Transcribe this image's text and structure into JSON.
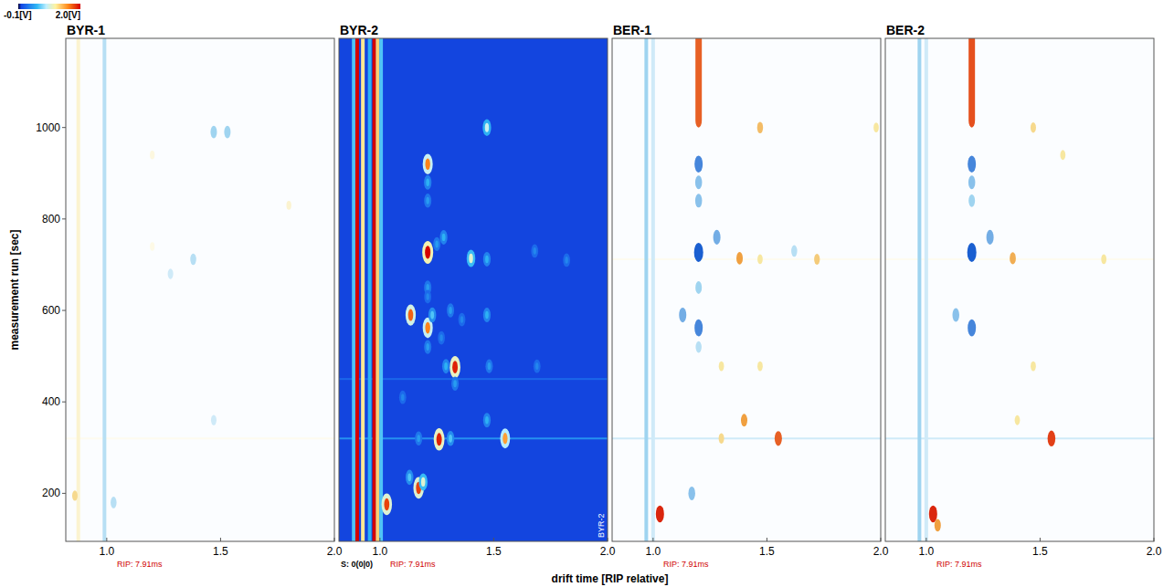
{
  "chart_data": {
    "type": "heatmap",
    "xlabel": "drift time [RIP relative]",
    "ylabel": "measurement run [sec]",
    "xlim": [
      0.82,
      2.0
    ],
    "ylim": [
      95,
      1195
    ],
    "xticks": [
      {
        "value": 1.0,
        "label": "1.0"
      },
      1.5,
      {
        "value": 2.0,
        "label": "2.0"
      }
    ],
    "yticks": [
      200,
      400,
      600,
      800,
      1000
    ],
    "colorbar": {
      "range": [
        -0.1,
        2.0
      ],
      "ticks": [
        {
          "value": -0.1,
          "label": "-0.1[V]"
        },
        {
          "value": 2.0,
          "label": "2.0[V]"
        }
      ]
    },
    "panels": [
      {
        "title": "BYR-1",
        "type": "difference",
        "rip_label": "RIP: 7.91ms",
        "vlines": [
          {
            "x": 0.875,
            "v": 0.15
          },
          {
            "x": 0.99,
            "v": -0.03
          }
        ],
        "hlines": [
          {
            "y": 320,
            "v": 0.05
          }
        ],
        "streaks": [],
        "spots": [
          {
            "x": 1.47,
            "y": 990,
            "v": -0.04
          },
          {
            "x": 1.53,
            "y": 990,
            "v": -0.04
          },
          {
            "x": 1.38,
            "y": 712,
            "v": -0.03
          },
          {
            "x": 1.28,
            "y": 680,
            "v": -0.02
          },
          {
            "x": 1.8,
            "y": 830,
            "v": 0.15
          },
          {
            "x": 1.2,
            "y": 940,
            "v": 0.1
          },
          {
            "x": 1.03,
            "y": 180,
            "v": -0.03
          },
          {
            "x": 0.86,
            "y": 195,
            "v": 0.4
          },
          {
            "x": 1.2,
            "y": 740,
            "v": 0.08
          },
          {
            "x": 1.47,
            "y": 360,
            "v": -0.02
          }
        ]
      },
      {
        "title": "BYR-2",
        "type": "absolute",
        "rip_label": "RIP: 7.91ms",
        "footer": "S: 0(0|0)",
        "watermark": "BYR-2",
        "vlines": [
          {
            "x": 0.885,
            "v": 0.6
          },
          {
            "x": 0.9,
            "v": 2.0
          },
          {
            "x": 0.925,
            "v": 1.2
          },
          {
            "x": 0.955,
            "v": 0.5
          },
          {
            "x": 0.975,
            "v": 2.0
          },
          {
            "x": 0.99,
            "v": 1.3
          },
          {
            "x": 1.005,
            "v": 0.6
          }
        ],
        "hlines": [
          {
            "y": 320,
            "v": 0.35
          },
          {
            "y": 450,
            "v": 0.15
          }
        ],
        "streaks": [],
        "spots": [
          {
            "x": 1.47,
            "y": 1000,
            "v": 0.9
          },
          {
            "x": 1.21,
            "y": 920,
            "v": 1.6
          },
          {
            "x": 1.21,
            "y": 880,
            "v": 0.5
          },
          {
            "x": 1.21,
            "y": 840,
            "v": 0.4
          },
          {
            "x": 1.21,
            "y": 727,
            "v": 2.0
          },
          {
            "x": 1.28,
            "y": 760,
            "v": 0.5
          },
          {
            "x": 1.25,
            "y": 745,
            "v": 0.4
          },
          {
            "x": 1.4,
            "y": 714,
            "v": 1.0
          },
          {
            "x": 1.47,
            "y": 712,
            "v": 0.5
          },
          {
            "x": 1.68,
            "y": 730,
            "v": 0.3
          },
          {
            "x": 1.82,
            "y": 710,
            "v": 0.3
          },
          {
            "x": 1.135,
            "y": 590,
            "v": 1.7
          },
          {
            "x": 1.21,
            "y": 562,
            "v": 1.6
          },
          {
            "x": 1.23,
            "y": 590,
            "v": 0.6
          },
          {
            "x": 1.33,
            "y": 476,
            "v": 1.9
          },
          {
            "x": 1.29,
            "y": 478,
            "v": 0.5
          },
          {
            "x": 1.48,
            "y": 478,
            "v": 0.4
          },
          {
            "x": 1.69,
            "y": 478,
            "v": 0.3
          },
          {
            "x": 1.26,
            "y": 318,
            "v": 1.9
          },
          {
            "x": 1.55,
            "y": 320,
            "v": 1.5
          },
          {
            "x": 1.31,
            "y": 320,
            "v": 0.6
          },
          {
            "x": 1.03,
            "y": 176,
            "v": 1.8
          },
          {
            "x": 1.17,
            "y": 212,
            "v": 1.8
          },
          {
            "x": 1.19,
            "y": 225,
            "v": 1.0
          },
          {
            "x": 1.13,
            "y": 235,
            "v": 0.6
          },
          {
            "x": 1.21,
            "y": 650,
            "v": 0.4
          },
          {
            "x": 1.21,
            "y": 630,
            "v": 0.3
          },
          {
            "x": 1.31,
            "y": 600,
            "v": 0.4
          },
          {
            "x": 1.36,
            "y": 580,
            "v": 0.3
          },
          {
            "x": 1.21,
            "y": 520,
            "v": 0.4
          },
          {
            "x": 1.27,
            "y": 540,
            "v": 0.3
          },
          {
            "x": 1.47,
            "y": 590,
            "v": 0.5
          },
          {
            "x": 1.47,
            "y": 360,
            "v": 0.5
          },
          {
            "x": 1.33,
            "y": 440,
            "v": 0.4
          },
          {
            "x": 1.1,
            "y": 410,
            "v": 0.3
          },
          {
            "x": 1.17,
            "y": 320,
            "v": 0.4
          }
        ]
      },
      {
        "title": "BER-1",
        "type": "difference",
        "rip_label": "RIP: 7.91ms",
        "vlines": [
          {
            "x": 0.97,
            "v": -0.04
          },
          {
            "x": 1.0,
            "v": -0.02
          }
        ],
        "hlines": [
          {
            "y": 320,
            "v": -0.02
          },
          {
            "y": 712,
            "v": 0.05
          }
        ],
        "streaks": [
          {
            "x": 1.2,
            "y0": 1000,
            "y1": 1195,
            "v": 1.2
          }
        ],
        "spots": [
          {
            "x": 1.2,
            "y": 920,
            "v": -0.08
          },
          {
            "x": 1.2,
            "y": 880,
            "v": -0.05
          },
          {
            "x": 1.2,
            "y": 840,
            "v": -0.05
          },
          {
            "x": 1.2,
            "y": 727,
            "v": -0.1
          },
          {
            "x": 1.28,
            "y": 760,
            "v": -0.06
          },
          {
            "x": 1.38,
            "y": 714,
            "v": 0.8
          },
          {
            "x": 1.47,
            "y": 1000,
            "v": 0.6
          },
          {
            "x": 1.47,
            "y": 712,
            "v": 0.3
          },
          {
            "x": 1.72,
            "y": 712,
            "v": 0.5
          },
          {
            "x": 1.13,
            "y": 590,
            "v": -0.06
          },
          {
            "x": 1.2,
            "y": 562,
            "v": -0.08
          },
          {
            "x": 1.2,
            "y": 650,
            "v": -0.04
          },
          {
            "x": 1.2,
            "y": 520,
            "v": -0.03
          },
          {
            "x": 1.3,
            "y": 478,
            "v": 0.3
          },
          {
            "x": 1.47,
            "y": 478,
            "v": 0.3
          },
          {
            "x": 1.4,
            "y": 360,
            "v": 0.8
          },
          {
            "x": 1.55,
            "y": 320,
            "v": 1.2
          },
          {
            "x": 1.3,
            "y": 320,
            "v": 0.4
          },
          {
            "x": 1.03,
            "y": 155,
            "v": 1.6
          },
          {
            "x": 1.17,
            "y": 200,
            "v": -0.05
          },
          {
            "x": 1.98,
            "y": 1000,
            "v": 0.3
          },
          {
            "x": 1.62,
            "y": 730,
            "v": -0.03
          }
        ]
      },
      {
        "title": "BER-2",
        "type": "difference",
        "rip_label": "RIP: 7.91ms",
        "vlines": [
          {
            "x": 0.97,
            "v": -0.04
          },
          {
            "x": 1.0,
            "v": -0.02
          }
        ],
        "hlines": [
          {
            "y": 320,
            "v": -0.02
          },
          {
            "y": 712,
            "v": 0.05
          }
        ],
        "streaks": [
          {
            "x": 1.2,
            "y0": 1000,
            "y1": 1195,
            "v": 1.3
          }
        ],
        "spots": [
          {
            "x": 1.2,
            "y": 920,
            "v": -0.08
          },
          {
            "x": 1.2,
            "y": 880,
            "v": -0.05
          },
          {
            "x": 1.2,
            "y": 840,
            "v": -0.04
          },
          {
            "x": 1.2,
            "y": 727,
            "v": -0.1
          },
          {
            "x": 1.28,
            "y": 760,
            "v": -0.06
          },
          {
            "x": 1.38,
            "y": 714,
            "v": 0.7
          },
          {
            "x": 1.47,
            "y": 1000,
            "v": 0.4
          },
          {
            "x": 1.2,
            "y": 562,
            "v": -0.08
          },
          {
            "x": 1.13,
            "y": 590,
            "v": -0.05
          },
          {
            "x": 1.55,
            "y": 320,
            "v": 1.4
          },
          {
            "x": 1.4,
            "y": 360,
            "v": 0.3
          },
          {
            "x": 1.47,
            "y": 478,
            "v": 0.3
          },
          {
            "x": 1.03,
            "y": 155,
            "v": 1.6
          },
          {
            "x": 1.05,
            "y": 130,
            "v": 0.8
          },
          {
            "x": 1.6,
            "y": 940,
            "v": 0.3
          },
          {
            "x": 1.78,
            "y": 712,
            "v": 0.3
          }
        ]
      }
    ]
  }
}
